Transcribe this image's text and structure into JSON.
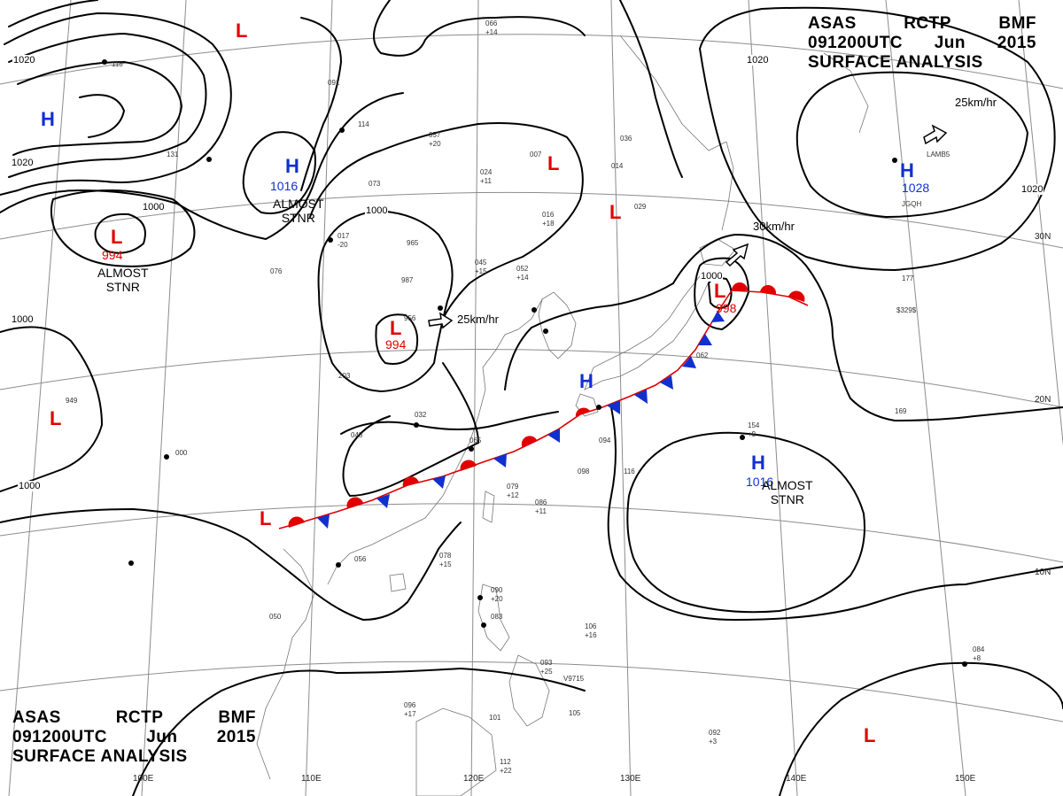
{
  "header": {
    "line1": [
      "ASAS",
      "RCTP",
      "BMF"
    ],
    "line2": [
      "091200UTC",
      "Jun",
      "2015"
    ],
    "line3": "SURFACE ANALYSIS"
  },
  "colors": {
    "low": "#e00000",
    "high": "#1030d0",
    "isobar": "#000000",
    "grid": "#8c8c8c"
  },
  "pressure_systems": [
    {
      "id": "low-nw",
      "type": "L"
    },
    {
      "id": "low-mongolia",
      "type": "L",
      "pressure": "994",
      "note": [
        "ALMOST",
        "STNR"
      ]
    },
    {
      "id": "high-northchina",
      "type": "H",
      "pressure": "1016",
      "note": [
        "ALMOST",
        "STNR"
      ]
    },
    {
      "id": "low-central",
      "type": "L",
      "pressure": "994"
    },
    {
      "id": "low-bohai",
      "type": "L"
    },
    {
      "id": "low-korea",
      "type": "L"
    },
    {
      "id": "low-west",
      "type": "L"
    },
    {
      "id": "low-sw",
      "type": "L"
    },
    {
      "id": "low-japan",
      "type": "L",
      "pressure": "998"
    },
    {
      "id": "high-ne",
      "type": "H",
      "pressure": "1028"
    },
    {
      "id": "high-japan",
      "type": "H"
    },
    {
      "id": "high-pacific",
      "type": "H",
      "pressure": "1016",
      "note": [
        "ALMOST",
        "STNR"
      ]
    },
    {
      "id": "low-se",
      "type": "L"
    },
    {
      "id": "high-far-nw",
      "type": "H"
    }
  ],
  "isobar_labels": [
    "1020",
    "1020",
    "1000",
    "1000",
    "1000",
    "1000",
    "1000",
    "1020",
    "1020"
  ],
  "movement_labels": [
    "25km/hr",
    "30km/hr",
    "25km/hr"
  ],
  "grid_labels": {
    "longitudes": [
      "100E",
      "110E",
      "120E",
      "130E",
      "140E",
      "150E"
    ],
    "latitudes": [
      "30N",
      "20N",
      "10N"
    ]
  },
  "station_samples": [
    "066",
    "+14",
    "024",
    "+11",
    "016",
    "+18",
    "045",
    "+15",
    "052",
    "+14",
    "000",
    "048",
    "065",
    "086",
    "+11",
    "079",
    "+12",
    "078",
    "+15",
    "056",
    "050",
    "090",
    "+20",
    "083",
    "106",
    "+16",
    "093",
    "+25",
    "096",
    "+17",
    "101",
    "105",
    "112",
    "+22",
    "092",
    "+3",
    "084",
    "+8",
    "154",
    "+9",
    "169",
    "177",
    "029",
    "032",
    "965",
    "987",
    "956",
    "203",
    "017",
    "-20",
    "073",
    "076",
    "118",
    "949",
    "091",
    "114",
    "057",
    "+20",
    "007",
    "014",
    "036",
    "094",
    "098",
    "116",
    "062",
    "131",
    "$329$",
    "V9715",
    "LAMB5",
    "JGQH"
  ]
}
